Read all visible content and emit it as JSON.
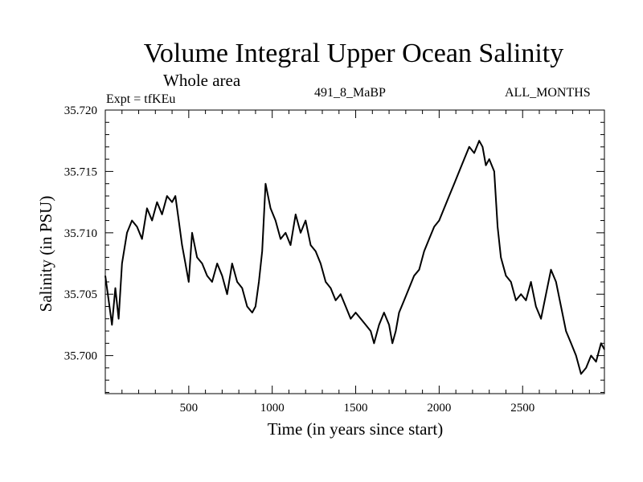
{
  "header": {
    "title": "Volume Integral Upper Ocean Salinity",
    "subtitle": "Whole area",
    "experiment": "Expt = tfKEu",
    "run_id": "491_8_MaBP",
    "months": "ALL_MONTHS"
  },
  "chart_data": {
    "type": "line",
    "title": "Volume Integral Upper Ocean Salinity",
    "subtitle": "Whole area",
    "xlabel": "Time (in years since start)",
    "ylabel": "Salinity (in PSU)",
    "xlim": [
      0,
      2990
    ],
    "ylim": [
      35.6969,
      35.72
    ],
    "xticks": [
      500,
      1000,
      1500,
      2000,
      2500
    ],
    "xtick_labels": [
      "500",
      "1000",
      "1500",
      "2000",
      "2500"
    ],
    "yticks": [
      35.7,
      35.705,
      35.71,
      35.715,
      35.72
    ],
    "ytick_labels": [
      "35.700",
      "35.705",
      "35.710",
      "35.715",
      "35.720"
    ],
    "grid": false,
    "line_color": "#000000",
    "series": [
      {
        "x": [
          0,
          20,
          40,
          60,
          80,
          100,
          130,
          160,
          190,
          220,
          250,
          280,
          310,
          340,
          370,
          400,
          420,
          440,
          460,
          480,
          500,
          520,
          550,
          580,
          610,
          640,
          670,
          700,
          730,
          760,
          790,
          820,
          850,
          880,
          900,
          920,
          940,
          960,
          990,
          1020,
          1050,
          1080,
          1110,
          1140,
          1170,
          1200,
          1230,
          1260,
          1290,
          1320,
          1350,
          1380,
          1410,
          1440,
          1470,
          1500,
          1530,
          1560,
          1590,
          1610,
          1640,
          1670,
          1700,
          1720,
          1740,
          1760,
          1790,
          1820,
          1850,
          1880,
          1910,
          1940,
          1970,
          2000,
          2030,
          2060,
          2090,
          2120,
          2150,
          2180,
          2210,
          2240,
          2260,
          2280,
          2300,
          2330,
          2350,
          2370,
          2400,
          2430,
          2460,
          2490,
          2520,
          2550,
          2580,
          2610,
          2640,
          2670,
          2700,
          2730,
          2760,
          2790,
          2820,
          2850,
          2880,
          2910,
          2940,
          2970,
          2990
        ],
        "y": [
          35.7065,
          35.7045,
          35.7025,
          35.7055,
          35.703,
          35.7075,
          35.71,
          35.711,
          35.7105,
          35.7095,
          35.712,
          35.711,
          35.7125,
          35.7115,
          35.713,
          35.7125,
          35.713,
          35.711,
          35.709,
          35.7075,
          35.706,
          35.71,
          35.708,
          35.7075,
          35.7065,
          35.706,
          35.7075,
          35.7065,
          35.705,
          35.7075,
          35.706,
          35.7055,
          35.704,
          35.7035,
          35.704,
          35.706,
          35.7085,
          35.714,
          35.712,
          35.711,
          35.7095,
          35.71,
          35.709,
          35.7115,
          35.71,
          35.711,
          35.709,
          35.7085,
          35.7075,
          35.706,
          35.7055,
          35.7045,
          35.705,
          35.704,
          35.703,
          35.7035,
          35.703,
          35.7025,
          35.702,
          35.701,
          35.7025,
          35.7035,
          35.7025,
          35.701,
          35.702,
          35.7035,
          35.7045,
          35.7055,
          35.7065,
          35.707,
          35.7085,
          35.7095,
          35.7105,
          35.711,
          35.712,
          35.713,
          35.714,
          35.715,
          35.716,
          35.717,
          35.7165,
          35.7175,
          35.717,
          35.7155,
          35.716,
          35.715,
          35.7105,
          35.708,
          35.7065,
          35.706,
          35.7045,
          35.705,
          35.7045,
          35.706,
          35.704,
          35.703,
          35.705,
          35.707,
          35.706,
          35.704,
          35.702,
          35.701,
          35.7,
          35.6985,
          35.699,
          35.7,
          35.6995,
          35.701,
          35.7005
        ]
      }
    ]
  }
}
